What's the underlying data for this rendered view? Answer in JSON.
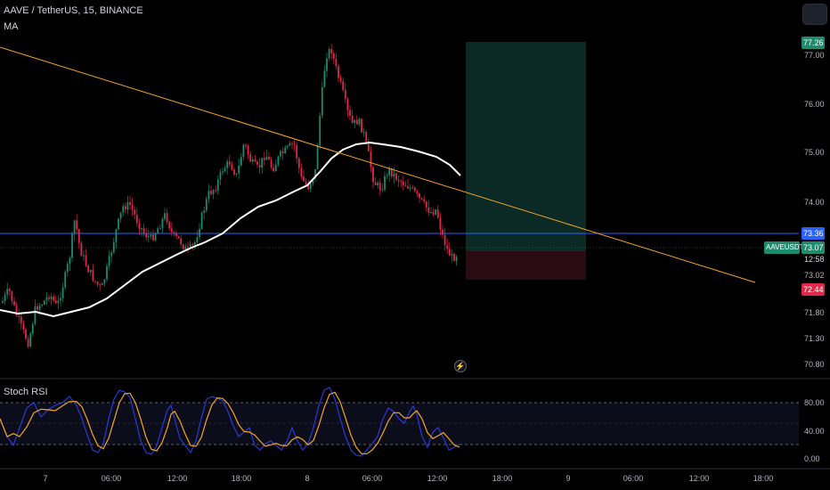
{
  "legend": {
    "symbol": "AAVE / TetherUS, 15, BINANCE",
    "ma": "MA",
    "stoch": "Stoch RSI"
  },
  "price_axis": {
    "ticks": [
      "77.00",
      "76.00",
      "75.00",
      "74.00",
      "73.02",
      "71.80",
      "71.30",
      "70.80"
    ],
    "tick_values": [
      77.0,
      76.0,
      75.0,
      74.0,
      73.02,
      71.8,
      71.3,
      70.8
    ],
    "tags": {
      "target": "77.26",
      "hline": "73.36",
      "symbol": "AAVEUSDT",
      "last": "73.07",
      "timer": "12:58",
      "stop": "72.44"
    }
  },
  "stoch_axis": {
    "ticks": [
      "80.00",
      "40.00",
      "0.00"
    ],
    "tick_values": [
      80,
      40,
      0
    ]
  },
  "time_axis": {
    "ticks": [
      "7",
      "06:00",
      "12:00",
      "18:00",
      "8",
      "06:00",
      "12:00",
      "18:00",
      "9",
      "06:00",
      "12:00",
      "18:00"
    ]
  },
  "colors": {
    "background": "#000000",
    "up": "#1e8a6e",
    "down": "#e0294a",
    "ma": "#ffffff",
    "trendline": "#f5a623",
    "hline": "#2962ff",
    "profit_zone": "#0b2a25",
    "loss_zone": "#2a0b12",
    "stoch_k": "#2a39d6",
    "stoch_d": "#f5a623",
    "target_tag": "#1e8a6e",
    "stop_tag": "#e0294a",
    "hline_tag": "#2962ff"
  },
  "icons": {
    "lightning": "lightning-icon",
    "menu": "menu-icon"
  }
}
